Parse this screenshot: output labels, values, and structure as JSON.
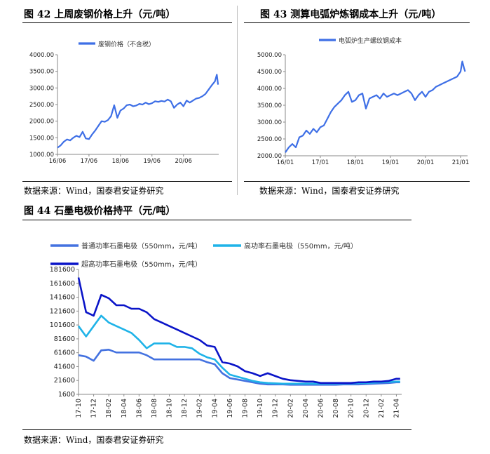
{
  "figures": [
    {
      "title": "图 42   上周废钢价格上升（元/吨）",
      "source": "数据来源：Wind，国泰君安证券研究"
    },
    {
      "title": "图 43  测算电弧炉炼钢成本上升（元/吨）",
      "source": "数据来源：Wind，国泰君安证券研究"
    },
    {
      "title": "图 44 石墨电极价格持平（元/吨）",
      "source": "数据来源：Wind，国泰君安证券研究"
    }
  ],
  "chart_data": [
    {
      "type": "line",
      "title": "",
      "xlabel": "",
      "ylabel": "",
      "x_ticks": [
        "16/06",
        "17/06",
        "18/06",
        "19/06",
        "20/06"
      ],
      "y_ticks": [
        "1000.00",
        "1500.00",
        "2000.00",
        "2500.00",
        "3000.00",
        "3500.00",
        "4000.00"
      ],
      "ylim": [
        1000,
        4000
      ],
      "xlim": [
        0,
        5.12
      ],
      "legend_position": "top",
      "grid": false,
      "series": [
        {
          "name": "废钢价格（不含税）",
          "color": "#3e6fe6",
          "x": [
            0,
            0.1,
            0.2,
            0.3,
            0.4,
            0.5,
            0.6,
            0.7,
            0.8,
            0.9,
            1.0,
            1.1,
            1.2,
            1.3,
            1.4,
            1.5,
            1.6,
            1.7,
            1.8,
            1.9,
            2.0,
            2.1,
            2.2,
            2.3,
            2.4,
            2.5,
            2.6,
            2.7,
            2.8,
            2.9,
            3.0,
            3.1,
            3.2,
            3.3,
            3.4,
            3.5,
            3.6,
            3.7,
            3.8,
            3.9,
            4.0,
            4.1,
            4.2,
            4.3,
            4.4,
            4.5,
            4.6,
            4.7,
            4.8,
            4.9,
            5.0,
            5.06,
            5.1
          ],
          "values": [
            1200,
            1270,
            1380,
            1450,
            1420,
            1500,
            1560,
            1520,
            1680,
            1480,
            1460,
            1600,
            1720,
            1860,
            2000,
            1980,
            2030,
            2150,
            2480,
            2100,
            2320,
            2380,
            2480,
            2500,
            2450,
            2470,
            2520,
            2500,
            2560,
            2510,
            2540,
            2600,
            2580,
            2610,
            2590,
            2650,
            2600,
            2400,
            2500,
            2560,
            2450,
            2620,
            2560,
            2620,
            2680,
            2700,
            2750,
            2820,
            2950,
            3080,
            3200,
            3400,
            3100
          ]
        }
      ]
    },
    {
      "type": "line",
      "title": "",
      "xlabel": "",
      "ylabel": "",
      "x_ticks": [
        "16/01",
        "17/01",
        "18/01",
        "19/01",
        "20/01",
        "21/01"
      ],
      "y_ticks": [
        "2000.00",
        "2500.00",
        "3000.00",
        "3500.00",
        "4000.00",
        "4500.00",
        "5000.00"
      ],
      "ylim": [
        2000,
        5000
      ],
      "xlim": [
        0,
        5.2
      ],
      "legend_position": "top",
      "grid": false,
      "series": [
        {
          "name": "电弧炉生产螺纹钢成本",
          "color": "#3e6fe6",
          "x": [
            0,
            0.1,
            0.2,
            0.3,
            0.4,
            0.5,
            0.6,
            0.7,
            0.8,
            0.9,
            1.0,
            1.1,
            1.2,
            1.3,
            1.4,
            1.5,
            1.6,
            1.7,
            1.8,
            1.9,
            2.0,
            2.1,
            2.2,
            2.3,
            2.4,
            2.5,
            2.6,
            2.7,
            2.8,
            2.9,
            3.0,
            3.1,
            3.2,
            3.3,
            3.4,
            3.5,
            3.6,
            3.7,
            3.8,
            3.9,
            4.0,
            4.1,
            4.2,
            4.3,
            4.4,
            4.5,
            4.6,
            4.7,
            4.8,
            4.9,
            5.0,
            5.05,
            5.1,
            5.13
          ],
          "values": [
            2100,
            2250,
            2350,
            2250,
            2550,
            2600,
            2750,
            2650,
            2800,
            2700,
            2850,
            2900,
            3100,
            3300,
            3450,
            3550,
            3650,
            3800,
            3900,
            3600,
            3650,
            3800,
            3850,
            3400,
            3700,
            3750,
            3800,
            3700,
            3850,
            3750,
            3800,
            3850,
            3800,
            3850,
            3900,
            3950,
            3850,
            3650,
            3800,
            3900,
            3750,
            3900,
            3950,
            4050,
            4100,
            4150,
            4200,
            4250,
            4300,
            4350,
            4500,
            4800,
            4600,
            4500
          ]
        }
      ]
    },
    {
      "type": "line",
      "title": "",
      "xlabel": "",
      "ylabel": "",
      "x_ticks": [
        "17-10",
        "17-12",
        "18-02",
        "18-04",
        "18-06",
        "18-08",
        "18-10",
        "18-12",
        "19-02",
        "19-04",
        "19-06",
        "19-08",
        "19-10",
        "19-12",
        "20-02",
        "20-04",
        "20-06",
        "20-08",
        "20-10",
        "20-12",
        "21-02",
        "21-04"
      ],
      "y_ticks": [
        "1600",
        "21600",
        "41600",
        "61600",
        "81600",
        "101600",
        "121600",
        "141600",
        "161600",
        "181600"
      ],
      "ylim": [
        1600,
        181600
      ],
      "xlim": [
        0,
        42.7
      ],
      "legend_position": "top-left",
      "grid": false,
      "series": [
        {
          "name": "普通功率石墨电极（550mm，元/吨）",
          "color": "#4472e0",
          "x": [
            0,
            1,
            2,
            3,
            4,
            5,
            6,
            7,
            8,
            9,
            10,
            11,
            12,
            13,
            14,
            15,
            16,
            17,
            18,
            19,
            20,
            21,
            22,
            23,
            24,
            25,
            26,
            27,
            28,
            29,
            30,
            31,
            32,
            33,
            34,
            35,
            36,
            37,
            38,
            39,
            40,
            41,
            42,
            42.5
          ],
          "values": [
            58000,
            56000,
            50000,
            65000,
            66000,
            62000,
            62000,
            62000,
            62000,
            58000,
            52000,
            52000,
            52000,
            52000,
            52000,
            52000,
            52000,
            48000,
            45000,
            32000,
            25000,
            23000,
            21000,
            19000,
            17000,
            16000,
            16000,
            16000,
            15500,
            15500,
            15500,
            15500,
            15500,
            15500,
            15500,
            16000,
            16000,
            16000,
            16500,
            17000,
            17500,
            18000,
            19000,
            19000
          ]
        },
        {
          "name": "高功率石墨电极（550mm，元/吨）",
          "color": "#1fb3e8",
          "x": [
            0,
            1,
            2,
            3,
            4,
            5,
            6,
            7,
            8,
            9,
            10,
            11,
            12,
            13,
            14,
            15,
            16,
            17,
            18,
            19,
            20,
            21,
            22,
            23,
            24,
            25,
            26,
            27,
            28,
            29,
            30,
            31,
            32,
            33,
            34,
            35,
            36,
            37,
            38,
            39,
            40,
            41,
            42,
            42.5
          ],
          "values": [
            100000,
            85000,
            100000,
            115000,
            105000,
            100000,
            95000,
            90000,
            80000,
            68000,
            75000,
            75000,
            75000,
            70000,
            70000,
            68000,
            60000,
            55000,
            52000,
            40000,
            30000,
            27000,
            24000,
            21000,
            19000,
            18000,
            17500,
            17000,
            17000,
            17000,
            17000,
            17000,
            17000,
            17000,
            17000,
            17500,
            17500,
            18000,
            18000,
            18500,
            19000,
            19500,
            20000,
            20000
          ]
        },
        {
          "name": "超高功率石墨电极（550mm，元/吨）",
          "color": "#0a14c8",
          "x": [
            0,
            1,
            2,
            3,
            4,
            5,
            6,
            7,
            8,
            9,
            10,
            11,
            12,
            13,
            14,
            15,
            16,
            17,
            18,
            19,
            20,
            21,
            22,
            23,
            24,
            25,
            26,
            27,
            28,
            29,
            30,
            31,
            32,
            33,
            34,
            35,
            36,
            37,
            38,
            39,
            40,
            41,
            42,
            42.5
          ],
          "values": [
            170000,
            120000,
            115000,
            145000,
            140000,
            130000,
            130000,
            125000,
            125000,
            120000,
            110000,
            105000,
            100000,
            95000,
            90000,
            85000,
            80000,
            72000,
            70000,
            48000,
            46000,
            42000,
            35000,
            32000,
            28000,
            32000,
            28000,
            24000,
            22000,
            21000,
            20000,
            20000,
            18000,
            18000,
            18000,
            18000,
            18000,
            19000,
            19000,
            20000,
            20000,
            21000,
            24000,
            24000
          ]
        }
      ]
    }
  ]
}
